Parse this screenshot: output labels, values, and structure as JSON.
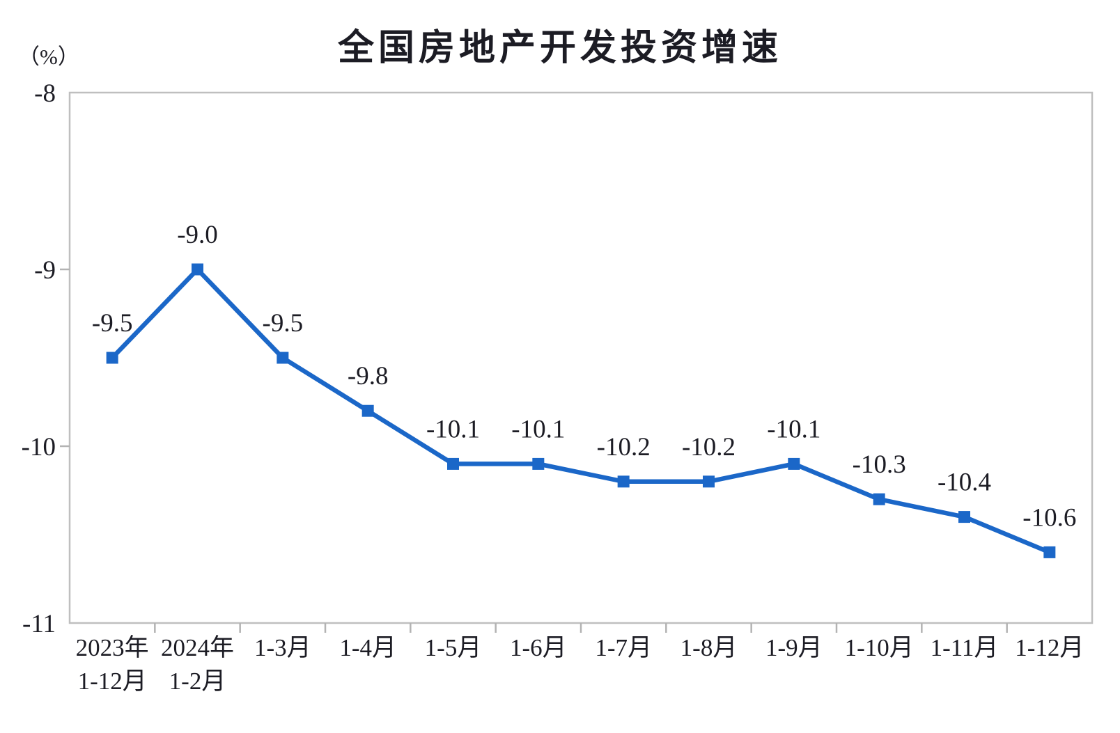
{
  "chart_data": {
    "type": "line",
    "title": "全国房地产开发投资增速",
    "unit_label": "（%）",
    "categories": [
      "2023年\n1-12月",
      "2024年\n1-2月",
      "1-3月",
      "1-4月",
      "1-5月",
      "1-6月",
      "1-7月",
      "1-8月",
      "1-9月",
      "1-10月",
      "1-11月",
      "1-12月"
    ],
    "series": [
      {
        "name": "全国房地产开发投资增速",
        "values": [
          -9.5,
          -9.0,
          -9.5,
          -9.8,
          -10.1,
          -10.1,
          -10.2,
          -10.2,
          -10.1,
          -10.3,
          -10.4,
          -10.6
        ],
        "data_labels": [
          "-9.5",
          "-9.0",
          "-9.5",
          "-9.8",
          "-10.1",
          "-10.1",
          "-10.2",
          "-10.2",
          "-10.1",
          "-10.3",
          "-10.4",
          "-10.6"
        ]
      }
    ],
    "xlabel": "",
    "ylabel": "（%）",
    "ylim": [
      -11,
      -8
    ],
    "yticks": [
      -8,
      -9,
      -10,
      -11
    ],
    "ytick_labels": [
      "-8",
      "-9",
      "-10",
      "-11"
    ],
    "grid": false,
    "legend_position": "none",
    "marker": "square",
    "colors": {
      "line": "#1b67c8",
      "marker": "#1b67c8",
      "axis_border": "#bfbfbf",
      "tick": "#b3b3b3",
      "text": "#1c1c24"
    }
  }
}
